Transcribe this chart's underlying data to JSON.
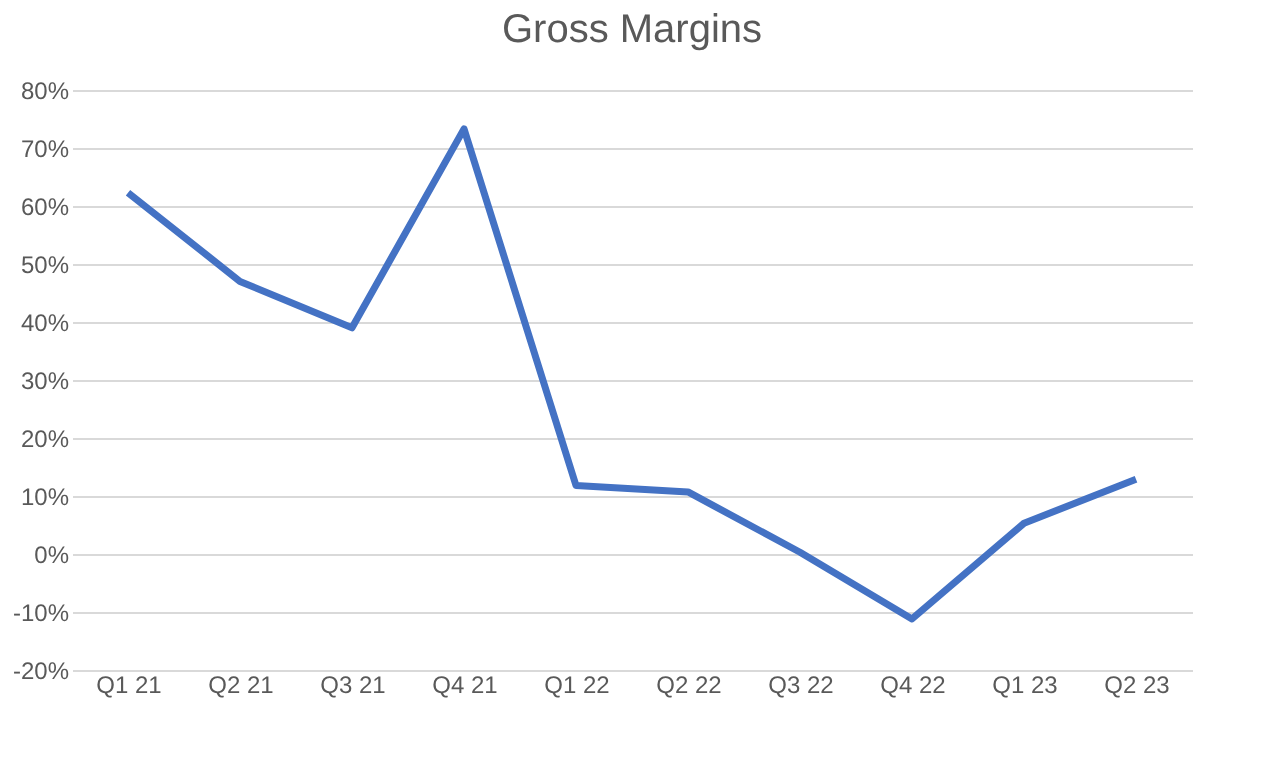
{
  "chart_data": {
    "type": "line",
    "title": "Gross Margins",
    "categories": [
      "Q1 21",
      "Q2 21",
      "Q3 21",
      "Q4 21",
      "Q1 22",
      "Q2 22",
      "Q3 22",
      "Q4 22",
      "Q1 23",
      "Q2 23"
    ],
    "series": [
      {
        "color": "#4472c4",
        "values": [
          62.3,
          47,
          39,
          73.3,
          11.8,
          10.7,
          0.3,
          -11.2,
          5.3,
          12.9
        ]
      }
    ],
    "ylim": [
      -20,
      80
    ],
    "yticks": [
      {
        "value": -20,
        "label": "-20%"
      },
      {
        "value": -10,
        "label": "-10%"
      },
      {
        "value": 0,
        "label": "0%"
      },
      {
        "value": 10,
        "label": "10%"
      },
      {
        "value": 20,
        "label": "20%"
      },
      {
        "value": 30,
        "label": "30%"
      },
      {
        "value": 40,
        "label": "40%"
      },
      {
        "value": 50,
        "label": "50%"
      },
      {
        "value": 60,
        "label": "60%"
      },
      {
        "value": 70,
        "label": "70%"
      },
      {
        "value": 80,
        "label": "80%"
      }
    ],
    "grid": "y",
    "legend": false,
    "marker": "none",
    "line_style": "solid"
  }
}
